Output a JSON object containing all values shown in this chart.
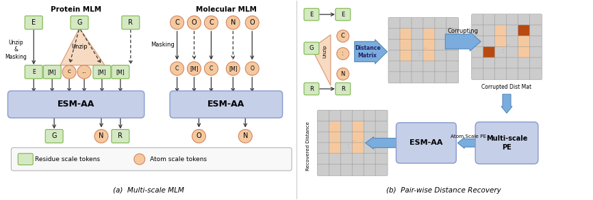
{
  "title_a": "(a)  Multi-scale MLM",
  "title_b": "(b)  Pair-wise Distance Recovery",
  "protein_mlm_title": "Protein MLM",
  "molecular_mlm_title": "Molecular MLM",
  "bg_color": "#ffffff",
  "green_box_fc": "#d4e8c2",
  "green_box_ec": "#7ab648",
  "orange_circle_fc": "#f5c9a0",
  "orange_circle_ec": "#d4845a",
  "esm_box_fc": "#c5cfe8",
  "esm_box_ec": "#8899cc",
  "unzip_triangle_fc": "#f5d5b8",
  "unzip_triangle_ec": "#d4845a",
  "legend_box_fc": "#f8f8f8",
  "legend_box_ec": "#aaaaaa",
  "arrow_color": "#333333",
  "dashed_color": "#555555",
  "grid_gray": "#cccccc",
  "grid_orange_light": "#f5c9a0",
  "grid_orange_dark": "#b84a10",
  "blue_arrow_fc": "#7aaddd",
  "blue_arrow_ec": "#5588bb",
  "multiscale_box_fc": "#c5cfe8",
  "multiscale_box_ec": "#8899cc"
}
